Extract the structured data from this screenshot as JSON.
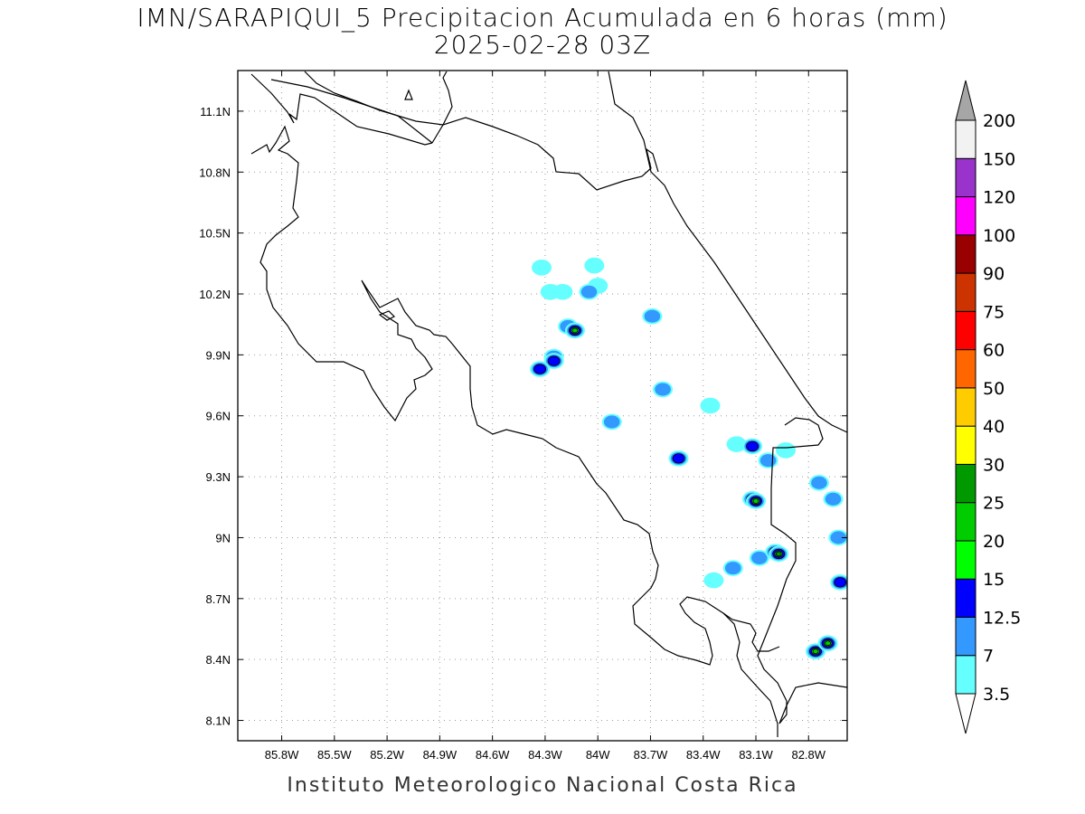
{
  "title": {
    "line1": "IMN/SARAPIQUI_5 Precipitacion Acumulada en 6 horas (mm)",
    "line2": "2025-02-28 03Z"
  },
  "footer": "Instituto Meteorologico Nacional Costa Rica",
  "map": {
    "lon_range": [
      -86.05,
      -82.58
    ],
    "lat_range": [
      8.0,
      11.3
    ],
    "x_ticks": [
      {
        "lon": -85.8,
        "label": "85.8W"
      },
      {
        "lon": -85.5,
        "label": "85.5W"
      },
      {
        "lon": -85.2,
        "label": "85.2W"
      },
      {
        "lon": -84.9,
        "label": "84.9W"
      },
      {
        "lon": -84.6,
        "label": "84.6W"
      },
      {
        "lon": -84.3,
        "label": "84.3W"
      },
      {
        "lon": -84.0,
        "label": "84W"
      },
      {
        "lon": -83.7,
        "label": "83.7W"
      },
      {
        "lon": -83.4,
        "label": "83.4W"
      },
      {
        "lon": -83.1,
        "label": "83.1W"
      },
      {
        "lon": -82.8,
        "label": "82.8W"
      }
    ],
    "y_ticks": [
      {
        "lat": 8.1,
        "label": "8.1N"
      },
      {
        "lat": 8.4,
        "label": "8.4N"
      },
      {
        "lat": 8.7,
        "label": "8.7N"
      },
      {
        "lat": 9.0,
        "label": "9N"
      },
      {
        "lat": 9.3,
        "label": "9.3N"
      },
      {
        "lat": 9.6,
        "label": "9.6N"
      },
      {
        "lat": 9.9,
        "label": "9.9N"
      },
      {
        "lat": 10.2,
        "label": "10.2N"
      },
      {
        "lat": 10.5,
        "label": "10.5N"
      },
      {
        "lat": 10.8,
        "label": "10.8N"
      },
      {
        "lat": 11.1,
        "label": "11.1N"
      }
    ],
    "grid": "dotted",
    "precip_cells": [
      {
        "lon": -84.32,
        "lat": 10.33,
        "mm": 3.5
      },
      {
        "lon": -84.27,
        "lat": 10.21,
        "mm": 3.5
      },
      {
        "lon": -84.2,
        "lat": 10.21,
        "mm": 3.5
      },
      {
        "lon": -84.05,
        "lat": 10.21,
        "mm": 7
      },
      {
        "lon": -84.0,
        "lat": 10.24,
        "mm": 3.5
      },
      {
        "lon": -84.02,
        "lat": 10.34,
        "mm": 3.5
      },
      {
        "lon": -84.17,
        "lat": 10.04,
        "mm": 7
      },
      {
        "lon": -84.13,
        "lat": 10.02,
        "mm": 20
      },
      {
        "lon": -83.69,
        "lat": 10.09,
        "mm": 7
      },
      {
        "lon": -84.25,
        "lat": 9.89,
        "mm": 7
      },
      {
        "lon": -84.25,
        "lat": 9.87,
        "mm": 12.5
      },
      {
        "lon": -84.33,
        "lat": 9.83,
        "mm": 12.5
      },
      {
        "lon": -83.63,
        "lat": 9.73,
        "mm": 7
      },
      {
        "lon": -83.36,
        "lat": 9.65,
        "mm": 3.5
      },
      {
        "lon": -83.92,
        "lat": 9.57,
        "mm": 7
      },
      {
        "lon": -83.12,
        "lat": 9.45,
        "mm": 12.5
      },
      {
        "lon": -83.21,
        "lat": 9.46,
        "mm": 3.5
      },
      {
        "lon": -83.03,
        "lat": 9.38,
        "mm": 7
      },
      {
        "lon": -82.93,
        "lat": 9.43,
        "mm": 3.5
      },
      {
        "lon": -83.54,
        "lat": 9.39,
        "mm": 12.5
      },
      {
        "lon": -83.12,
        "lat": 9.19,
        "mm": 12.5
      },
      {
        "lon": -83.1,
        "lat": 9.18,
        "mm": 20
      },
      {
        "lon": -82.74,
        "lat": 9.27,
        "mm": 7
      },
      {
        "lon": -82.66,
        "lat": 9.19,
        "mm": 7
      },
      {
        "lon": -82.63,
        "lat": 9.0,
        "mm": 7
      },
      {
        "lon": -82.62,
        "lat": 8.78,
        "mm": 12.5
      },
      {
        "lon": -82.99,
        "lat": 8.93,
        "mm": 12.5
      },
      {
        "lon": -82.97,
        "lat": 8.92,
        "mm": 25
      },
      {
        "lon": -83.08,
        "lat": 8.9,
        "mm": 7
      },
      {
        "lon": -83.23,
        "lat": 8.85,
        "mm": 7
      },
      {
        "lon": -83.34,
        "lat": 8.79,
        "mm": 3.5
      },
      {
        "lon": -82.76,
        "lat": 8.44,
        "mm": 20
      },
      {
        "lon": -82.69,
        "lat": 8.48,
        "mm": 20
      },
      {
        "lon": -82.76,
        "lat": 8.44,
        "mm": 12.5
      }
    ]
  },
  "colorbar": {
    "levels": [
      "3.5",
      "7",
      "12.5",
      "15",
      "20",
      "25",
      "30",
      "40",
      "50",
      "60",
      "75",
      "90",
      "100",
      "120",
      "150",
      "200"
    ],
    "colors": [
      "#66ffff",
      "#3399ff",
      "#0000ff",
      "#00ff00",
      "#00cc00",
      "#009900",
      "#ffff00",
      "#ffcc00",
      "#ff6600",
      "#ff0000",
      "#cc3300",
      "#990000",
      "#ff00ff",
      "#9933cc",
      "#f2f2f2"
    ],
    "over_color": "#a6a6a6",
    "under_color": "#ffffff"
  }
}
